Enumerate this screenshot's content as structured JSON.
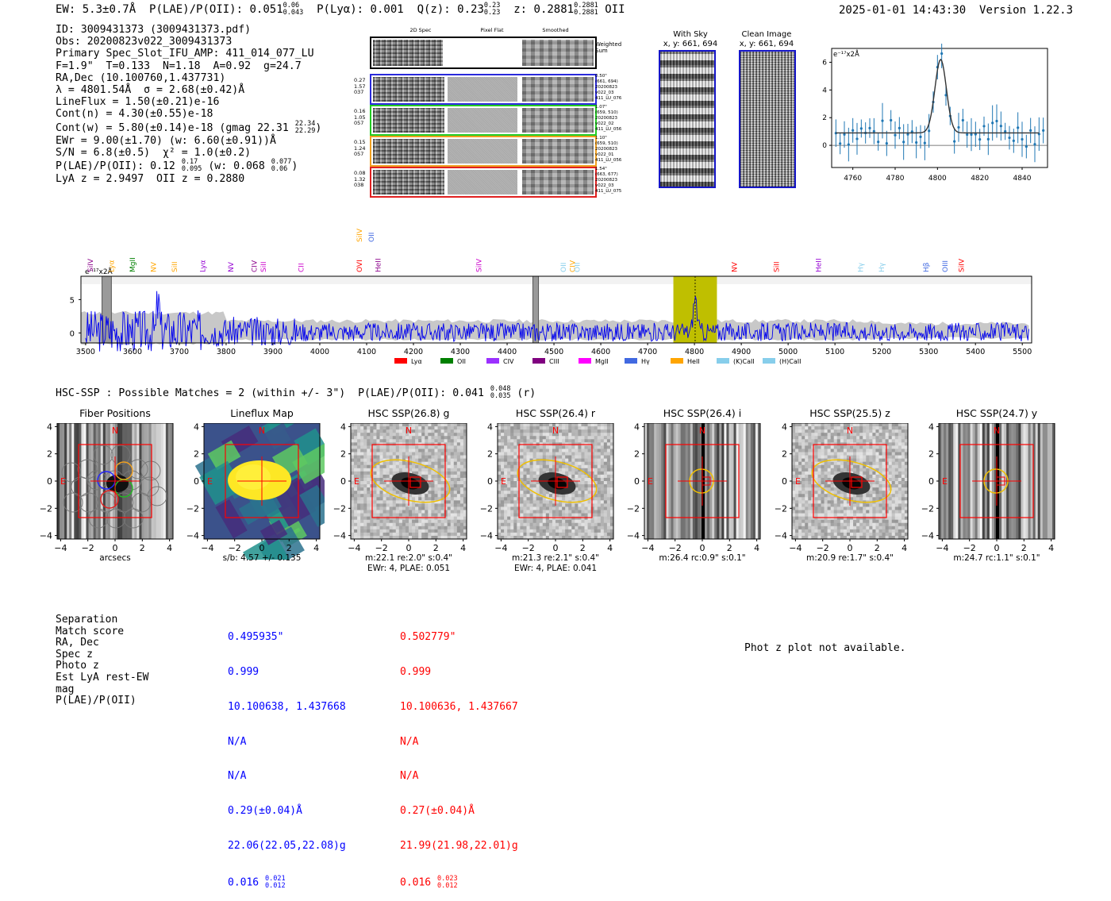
{
  "header": {
    "ew": "EW: 5.3±0.7Å",
    "ew_label": "EW:",
    "ew_value": "5.3±0.7Å",
    "plae_label": "P(LAE)/P(OII):",
    "plae_val": "0.051",
    "plae_hi": "0.06",
    "plae_lo": "0.043",
    "plya_label": "P(Lyα):",
    "plya_val": "0.001",
    "qz_label": "Q(z):",
    "qz_val": "0.23",
    "qz_hi": "0.23",
    "qz_lo": "0.23",
    "z_label": "z:",
    "z_val": "0.2881",
    "z_hi": "0.2881",
    "z_lo": "0.2881",
    "z_line": "OII",
    "timestamp": "2025-01-01 14:43:30",
    "version": "Version 1.22.3"
  },
  "info": {
    "id": "ID: 3009431373 (3009431373.pdf)",
    "obs": "Obs: 20200823v022_3009431373",
    "primary": "Primary Spec_Slot_IFU_AMP: 411_014_077_LU",
    "fit": "F=1.9\"  T=0.133  N=1.18  A=0.92  g=24.7",
    "radec": "RA,Dec (10.100760,1.437731)",
    "lambda": "λ = 4801.54Å  σ = 2.68(±0.42)Å",
    "lineflux": "LineFlux = 1.50(±0.21)e-16",
    "contn": "Cont(n) = 4.30(±0.55)e-18",
    "contw": "Cont(w) = 5.80(±0.14)e-18 (gmag 22.31",
    "contw_hi": "22.34",
    "contw_lo": "22.29",
    "ewr": "EWr = 9.00(±1.70) (w: 6.60(±0.91))Å",
    "sn": "S/N = 6.8(±0.5)  χ² = 1.0(±0.2)",
    "plae": "P(LAE)/P(OII): 0.12",
    "plae_hi": "0.17",
    "plae_lo": "0.095",
    "plae_w": "(w: 0.068",
    "plae_w_hi": "0.077",
    "plae_w_lo": "0.06",
    "lya_z": "LyA z = 2.9497  OII z = 0.2880"
  },
  "cutouts": {
    "col_titles": [
      "2D Spec",
      "Pixel Flat",
      "Smoothed"
    ],
    "weighted_sum": "Weighted\nSum",
    "rows": [
      {
        "left": [
          "0.27",
          "1.57",
          "037"
        ],
        "right": [
          "0.50\"",
          "(661, 694)",
          "20200823",
          "v022_03",
          "411_LU_076"
        ],
        "color": "#2a2adb"
      },
      {
        "left": [
          "0.16",
          "1.05",
          "057"
        ],
        "right": [
          "1.07\"",
          "(659, 510)",
          "20200823",
          "v022_02",
          "411_LU_056"
        ],
        "color": "#22cc22"
      },
      {
        "left": [
          "0.15",
          "1.24",
          "057"
        ],
        "right": [
          "1.10\"",
          "(659, 510)",
          "20200823",
          "v022_01",
          "411_LU_056"
        ],
        "color": "#f0a020"
      },
      {
        "left": [
          "0.08",
          "1.32",
          "038"
        ],
        "right": [
          "1.54\"",
          "(663, 677)",
          "20200823",
          "v022_03",
          "411_LU_075"
        ],
        "color": "#e02020"
      }
    ],
    "with_sky_title": "With Sky",
    "with_sky_xy": "x, y: 661, 694",
    "clean_title": "Clean Image",
    "clean_xy": "x, y: 661, 694"
  },
  "zoom_plot": {
    "ylabel": "e⁻¹⁷x2Å",
    "x_ticks": [
      "4760",
      "4780",
      "4800",
      "4820",
      "4840"
    ],
    "y_ticks": [
      "0",
      "2",
      "4",
      "6"
    ]
  },
  "full_spectrum": {
    "ylabel": "e⁻¹⁷x2Å",
    "x_ticks": [
      "3500",
      "3600",
      "3700",
      "3800",
      "3900",
      "4000",
      "4100",
      "4200",
      "4300",
      "4400",
      "4500",
      "4600",
      "4700",
      "4800",
      "4900",
      "5000",
      "5100",
      "5200",
      "5300",
      "5400",
      "5500"
    ],
    "y_ticks": [
      "0",
      "5"
    ],
    "line_labels": [
      {
        "text": "SiIV",
        "color": "#8b008b"
      },
      {
        "text": "Lyα",
        "color": "#ffa500"
      },
      {
        "text": "MgII",
        "color": "#008000"
      },
      {
        "text": "NV",
        "color": "#ffa500"
      },
      {
        "text": "SiII",
        "color": "#ffa500"
      },
      {
        "text": "Lyα",
        "color": "#9400d3"
      },
      {
        "text": "NV",
        "color": "#9400d3"
      },
      {
        "text": "CIV",
        "color": "#8b008b"
      },
      {
        "text": "SiII",
        "color": "#cc00cc"
      },
      {
        "text": "CII",
        "color": "#cc00cc"
      },
      {
        "text": "OVI",
        "color": "#ff0000"
      },
      {
        "text": "SiIV",
        "color": "#ffa500"
      },
      {
        "text": "OII",
        "color": "#4169e1"
      },
      {
        "text": "HeII",
        "color": "#8b008b"
      },
      {
        "text": "SiIV",
        "color": "#cc00cc"
      },
      {
        "text": "OII",
        "color": "#87ceeb"
      },
      {
        "text": "CIV",
        "color": "#ffa500"
      },
      {
        "text": "OII",
        "color": "#87ceeb"
      },
      {
        "text": "NV",
        "color": "#ff0000"
      },
      {
        "text": "SiII",
        "color": "#ff0000"
      },
      {
        "text": "HeII",
        "color": "#9400d3"
      },
      {
        "text": "Hγ",
        "color": "#87ceeb"
      },
      {
        "text": "Hγ",
        "color": "#87ceeb"
      },
      {
        "text": "Hβ",
        "color": "#4169e1"
      },
      {
        "text": "OIII",
        "color": "#4169e1"
      },
      {
        "text": "SiIV",
        "color": "#ff0000"
      }
    ],
    "legend": [
      {
        "name": "Lyα",
        "color": "#ff0000"
      },
      {
        "name": "OII",
        "color": "#008000"
      },
      {
        "name": "CIV",
        "color": "#9b30ff"
      },
      {
        "name": "CIII",
        "color": "#800080"
      },
      {
        "name": "MgII",
        "color": "#ff00ff"
      },
      {
        "name": "Hγ",
        "color": "#4169e1"
      },
      {
        "name": "HeII",
        "color": "#ffa500"
      },
      {
        "name": "(K)CaII",
        "color": "#87ceeb"
      },
      {
        "name": "(H)CaII",
        "color": "#87ceeb"
      }
    ]
  },
  "hsc": {
    "summary": "HSC-SSP : Possible Matches = 2 (within +/- 3\")  P(LAE)/P(OII): 0.041",
    "summary_hi": "0.048",
    "summary_lo": "0.035",
    "summary_tail": "(r)",
    "axis_ticks": [
      "−4",
      "−2",
      "0",
      "2",
      "4"
    ],
    "axis_ticks_y": [
      "4",
      "2",
      "0",
      "−2",
      "−4"
    ],
    "panels": [
      {
        "title": "Fiber Positions",
        "caption": "arcsecs",
        "caption2": ""
      },
      {
        "title": "Lineflux Map",
        "caption": "s/b: 4.57 +/- 0.135",
        "caption2": ""
      },
      {
        "title": "HSC SSP(26.8) g",
        "caption": "m:22.1  re:2.0\"  s:0.4\"",
        "caption2": "EWr: 4, PLAE: 0.051"
      },
      {
        "title": "HSC SSP(26.4) r",
        "caption": "m:21.3  re:2.1\"  s:0.4\"",
        "caption2": "EWr: 4, PLAE: 0.041"
      },
      {
        "title": "HSC SSP(26.4) i",
        "caption": "m:26.4 rc:0.9\"  s:0.1\"",
        "caption2": ""
      },
      {
        "title": "HSC SSP(25.5) z",
        "caption": "m:20.9  re:1.7\"  s:0.4\"",
        "caption2": ""
      },
      {
        "title": "HSC SSP(24.7) y",
        "caption": "m:24.7 rc:1.1\"  s:0.1\"",
        "caption2": ""
      }
    ],
    "north": "N",
    "east": "E"
  },
  "matches": {
    "labels": [
      "Separation",
      "Match score",
      "RA, Dec",
      "Spec z",
      "Photo z",
      "Est LyA rest-EW",
      "mag",
      "P(LAE)/P(OII)"
    ],
    "m1": {
      "sep": "0.495935\"",
      "score": "0.999",
      "radec": "10.100638, 1.437668",
      "specz": "N/A",
      "photoz": "N/A",
      "ew": "0.29(±0.04)Å",
      "mag": "22.06(22.05,22.08)g",
      "plae": "0.016",
      "plae_hi": "0.021",
      "plae_lo": "0.012"
    },
    "m2": {
      "sep": "0.502779\"",
      "score": "0.999",
      "radec": "10.100636, 1.437667",
      "specz": "N/A",
      "photoz": "N/A",
      "ew": "0.27(±0.04)Å",
      "mag": "21.99(21.98,22.01)g",
      "plae": "0.016",
      "plae_hi": "0.023",
      "plae_lo": "0.012"
    },
    "photz_msg": "Phot z plot not available."
  }
}
